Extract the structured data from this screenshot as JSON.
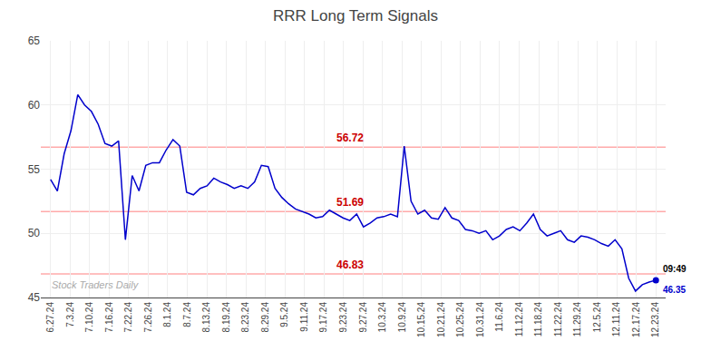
{
  "chart_data": {
    "type": "line",
    "title": "RRR Long Term Signals",
    "x": [
      0,
      0.348315,
      0.696629,
      1.044944,
      1.393258,
      1.741573,
      2.089888,
      2.438202,
      2.786517,
      3.134831,
      3.483146,
      3.831461,
      4.179775,
      4.52809,
      4.876404,
      5.224719,
      5.573034,
      5.921348,
      6.269663,
      6.617978,
      6.966292,
      7.314607,
      7.662921,
      8.011236,
      8.359551,
      8.707865,
      9.05618,
      9.404494,
      9.752809,
      10.101124,
      10.449438,
      10.797753,
      11.146067,
      11.494382,
      11.842697,
      12.191011,
      12.539326,
      12.88764,
      13.235955,
      13.58427,
      13.932584,
      14.280899,
      14.629213,
      14.977528,
      15.325843,
      15.674157,
      16.022472,
      16.370787,
      16.719101,
      17.067416,
      17.41573,
      17.764045,
      18.11236,
      18.460674,
      18.808989,
      19.157303,
      19.505618,
      19.853933,
      20.202247,
      20.550562,
      20.898876,
      21.247191,
      21.595506,
      21.94382,
      22.292135,
      22.640449,
      22.988764,
      23.337079,
      23.685393,
      24.033708,
      24.382022,
      24.730337,
      25.078652,
      25.426966,
      25.775281,
      26.123596,
      26.47191,
      26.820225,
      27.168539,
      27.516854,
      27.865169,
      28.213483,
      28.561798,
      28.910112,
      29.258427,
      29.606742,
      29.955056,
      30.303371,
      30.651685,
      31
    ],
    "values": [
      54.2,
      53.3,
      56.2,
      58.0,
      60.8,
      60.0,
      59.5,
      58.5,
      57.0,
      56.8,
      57.2,
      49.5,
      54.5,
      53.3,
      55.3,
      55.5,
      55.5,
      56.5,
      57.3,
      56.8,
      53.2,
      53.0,
      53.5,
      53.7,
      54.3,
      54.0,
      53.8,
      53.5,
      53.7,
      53.5,
      54.0,
      55.3,
      55.2,
      53.5,
      52.8,
      52.3,
      51.9,
      51.7,
      51.5,
      51.2,
      51.3,
      51.8,
      51.5,
      51.2,
      51.0,
      51.5,
      50.5,
      50.8,
      51.2,
      51.3,
      51.5,
      51.3,
      56.8,
      52.5,
      51.5,
      51.8,
      51.2,
      51.1,
      52.0,
      51.2,
      51.0,
      50.3,
      50.2,
      50.0,
      50.2,
      49.5,
      49.8,
      50.3,
      50.5,
      50.2,
      50.8,
      51.5,
      50.3,
      49.8,
      50.0,
      50.2,
      49.5,
      49.3,
      49.8,
      49.7,
      49.5,
      49.2,
      49.0,
      49.5,
      48.8,
      46.5,
      45.5,
      46.0,
      46.2,
      46.35
    ],
    "color": "#0000cc",
    "xlim": [
      -0.5,
      31.5
    ],
    "xticks": [
      {
        "value": 0,
        "label": "6.27.24"
      },
      {
        "value": 1,
        "label": "7.3.24"
      },
      {
        "value": 2,
        "label": "7.10.24"
      },
      {
        "value": 3,
        "label": "7.16.24"
      },
      {
        "value": 4,
        "label": "7.22.24"
      },
      {
        "value": 5,
        "label": "7.26.24"
      },
      {
        "value": 6,
        "label": "8.1.24"
      },
      {
        "value": 7,
        "label": "8.7.24"
      },
      {
        "value": 8,
        "label": "8.13.24"
      },
      {
        "value": 9,
        "label": "8.19.24"
      },
      {
        "value": 10,
        "label": "8.23.24"
      },
      {
        "value": 11,
        "label": "8.29.24"
      },
      {
        "value": 12,
        "label": "9.5.24"
      },
      {
        "value": 13,
        "label": "9.11.24"
      },
      {
        "value": 14,
        "label": "9.17.24"
      },
      {
        "value": 15,
        "label": "9.23.24"
      },
      {
        "value": 16,
        "label": "9.27.24"
      },
      {
        "value": 17,
        "label": "10.3.24"
      },
      {
        "value": 18,
        "label": "10.9.24"
      },
      {
        "value": 19,
        "label": "10.15.24"
      },
      {
        "value": 20,
        "label": "10.21.24"
      },
      {
        "value": 21,
        "label": "10.25.24"
      },
      {
        "value": 22,
        "label": "10.31.24"
      },
      {
        "value": 23,
        "label": "11.6.24"
      },
      {
        "value": 24,
        "label": "11.12.24"
      },
      {
        "value": 25,
        "label": "11.18.24"
      },
      {
        "value": 26,
        "label": "11.22.24"
      },
      {
        "value": 27,
        "label": "11.29.24"
      },
      {
        "value": 28,
        "label": "12.5.24"
      },
      {
        "value": 29,
        "label": "12.11.24"
      },
      {
        "value": 30,
        "label": "12.17.24"
      },
      {
        "value": 31,
        "label": "12.23.24"
      }
    ],
    "ylim": [
      45,
      65
    ],
    "yticks": [
      45,
      50,
      55,
      60,
      65
    ],
    "grid": true,
    "hlines": {
      "values": [
        56.72,
        51.69,
        46.83
      ],
      "color": "#ffaaaa",
      "label_color": "#cc0000"
    },
    "annotations": [
      {
        "text": "09:49",
        "color": "#000000"
      },
      {
        "text": "46.35",
        "color": "#0000cc"
      }
    ],
    "watermark": {
      "text": "Stock Traders Daily",
      "color": "#aaaaaa"
    }
  }
}
